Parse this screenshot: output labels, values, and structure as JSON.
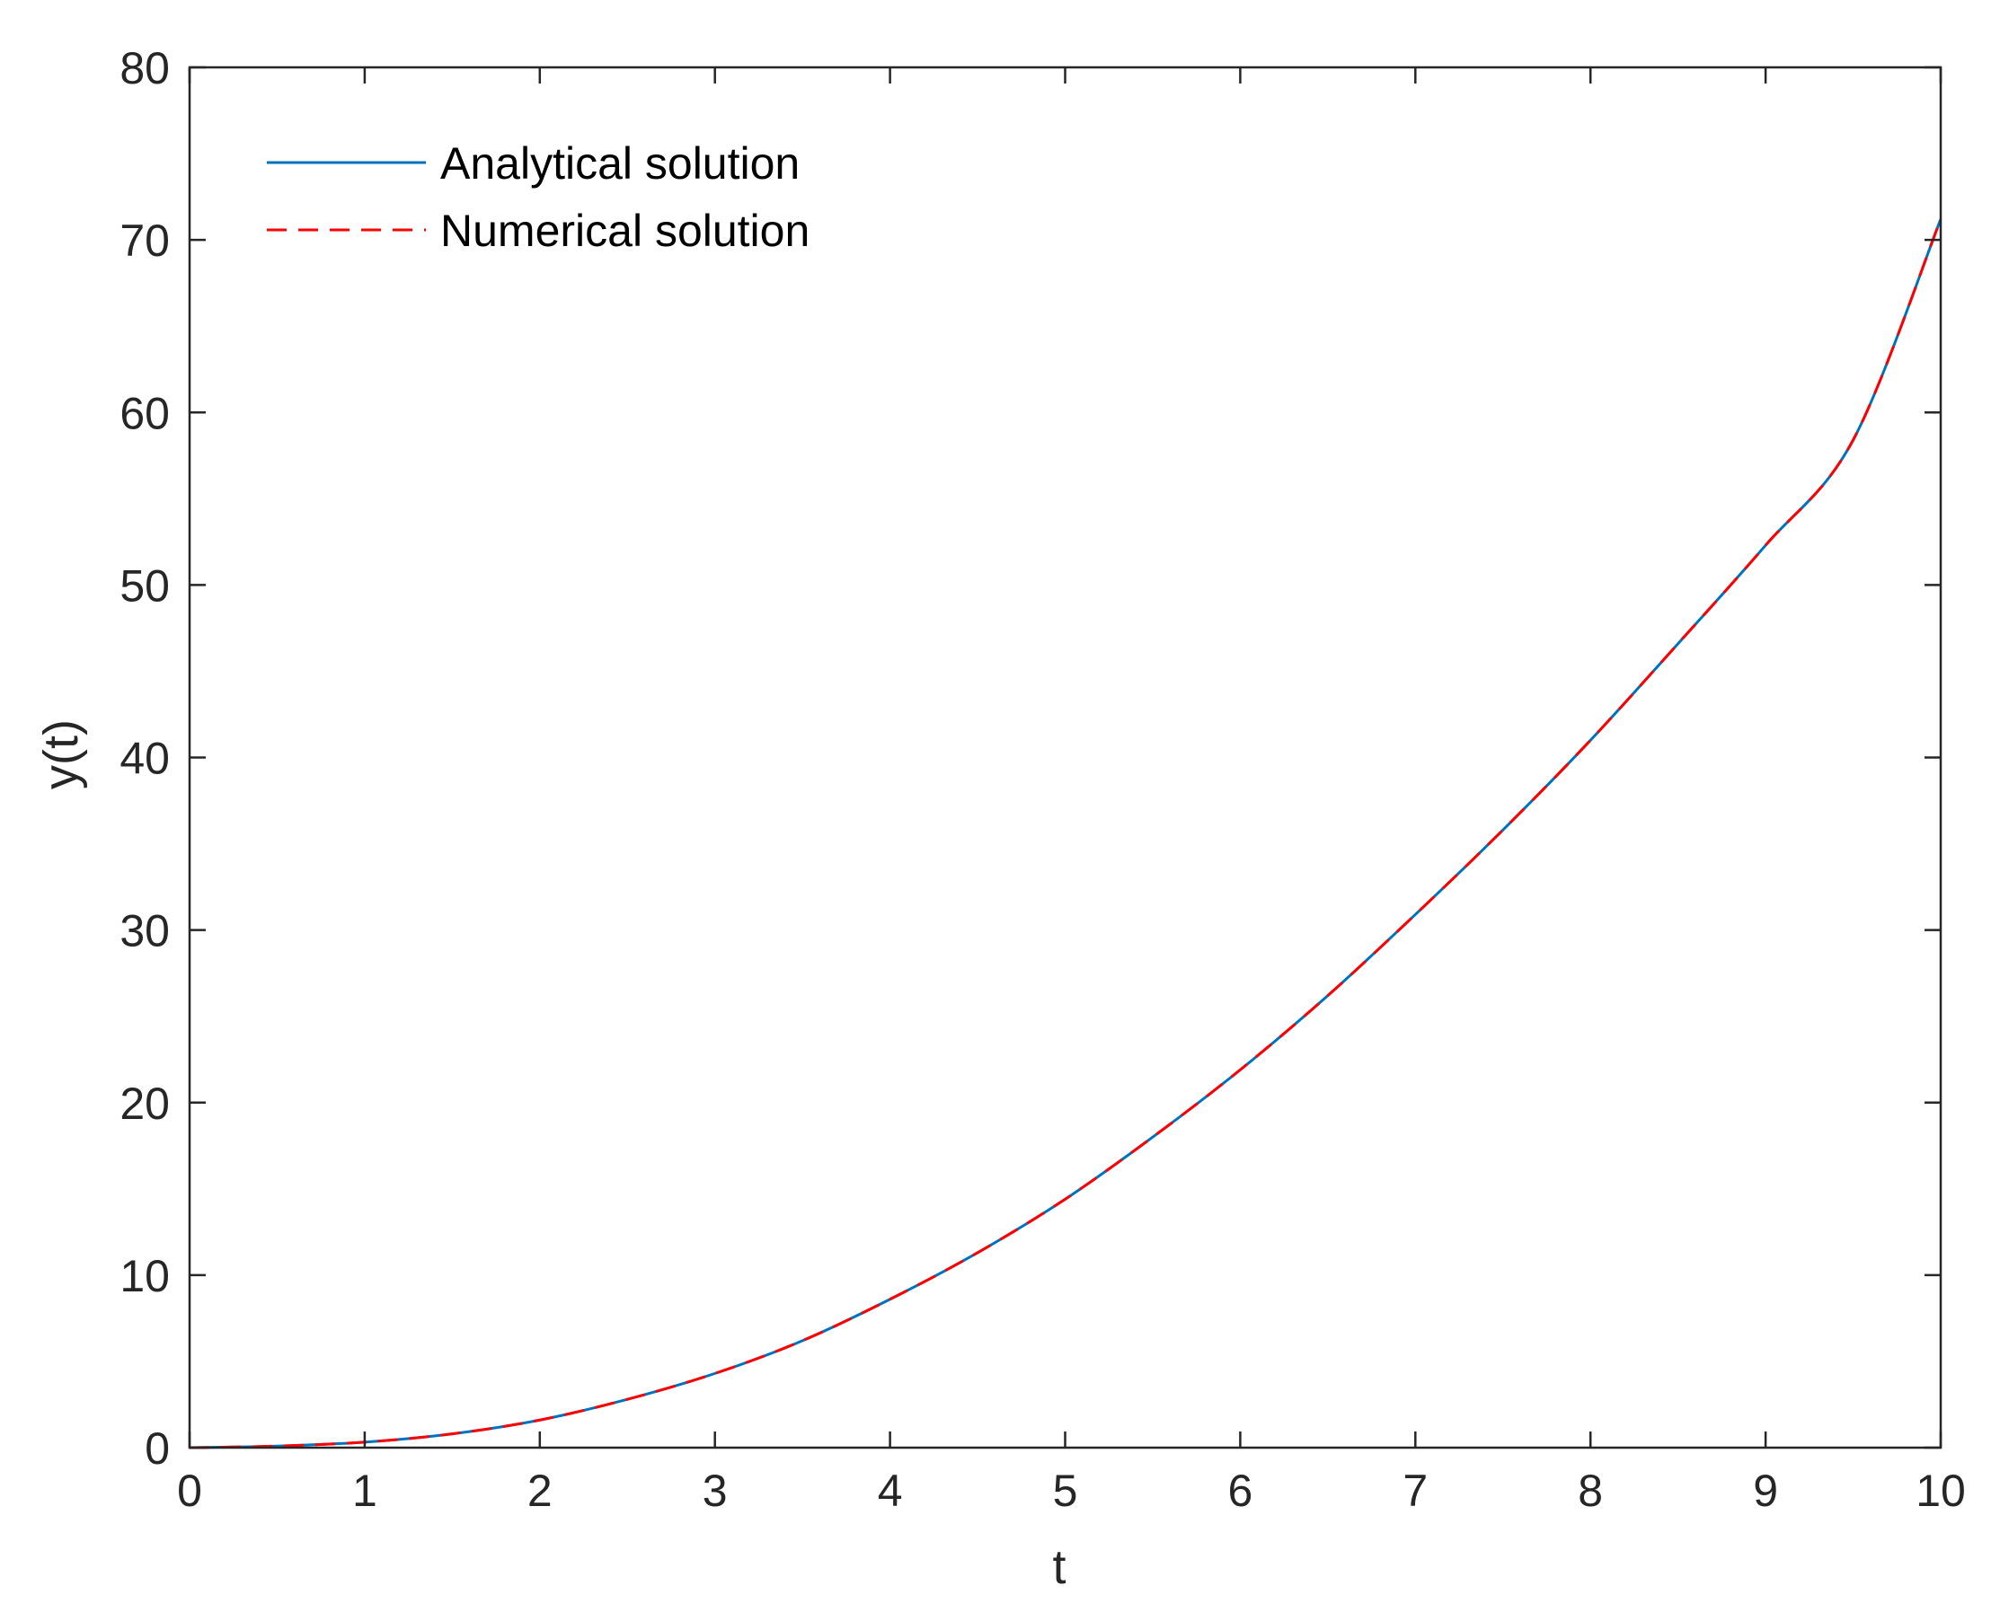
{
  "colors": {
    "analytical": "#0072BD",
    "numerical": "#FF0000",
    "axes": "#262626",
    "background": "#FFFFFF"
  },
  "chart_data": {
    "type": "line",
    "title": "",
    "xlabel": "t",
    "ylabel": "y(t)",
    "xlim": [
      0,
      10
    ],
    "ylim": [
      0,
      80
    ],
    "xticks": [
      0,
      1,
      2,
      3,
      4,
      5,
      6,
      7,
      8,
      9,
      10
    ],
    "yticks": [
      0,
      10,
      20,
      30,
      40,
      50,
      60,
      70,
      80
    ],
    "xtick_labels": [
      "0",
      "1",
      "2",
      "3",
      "4",
      "5",
      "6",
      "7",
      "8",
      "9",
      "10"
    ],
    "ytick_labels": [
      "0",
      "10",
      "20",
      "30",
      "40",
      "50",
      "60",
      "70",
      "80"
    ],
    "grid": false,
    "box": true,
    "legend_position": "top-left",
    "x": [
      0,
      0.5,
      1,
      1.5,
      2,
      2.5,
      3,
      3.5,
      4,
      4.5,
      5,
      5.5,
      6,
      6.5,
      7,
      7.5,
      8,
      8.5,
      9,
      9.5,
      10
    ],
    "series": [
      {
        "name": "Analytical solution",
        "style": "solid",
        "color": "#0072BD",
        "values": [
          0,
          0.09,
          0.32,
          0.8,
          1.6,
          2.8,
          4.3,
          6.2,
          8.6,
          11.3,
          14.4,
          18.0,
          21.9,
          26.2,
          30.9,
          35.8,
          41.0,
          46.6,
          52.3,
          58.4,
          71.2
        ]
      },
      {
        "name": "Numerical solution",
        "style": "dashed",
        "color": "#FF0000",
        "values": [
          0,
          0.09,
          0.32,
          0.8,
          1.6,
          2.8,
          4.3,
          6.2,
          8.6,
          11.3,
          14.4,
          18.0,
          21.9,
          26.2,
          30.9,
          35.8,
          41.0,
          46.6,
          52.3,
          58.4,
          71.2
        ]
      }
    ]
  }
}
